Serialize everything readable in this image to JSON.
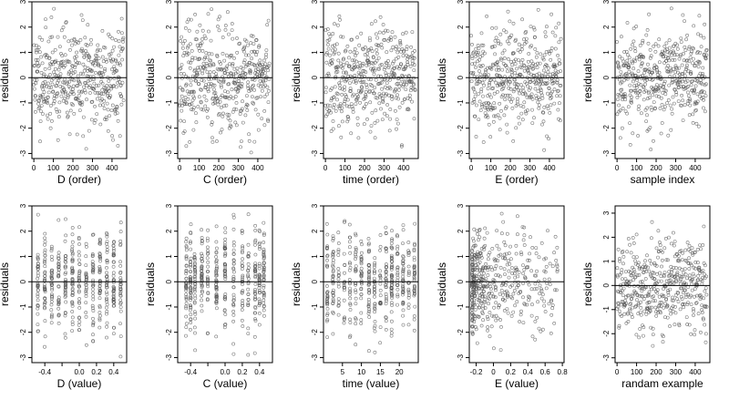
{
  "chart_data": [
    {
      "type": "scatter",
      "xlabel": "D (order)",
      "ylabel": "residuals",
      "xlim": [
        -10,
        475
      ],
      "ylim": [
        -3.2,
        3.0
      ],
      "xticks": [
        0,
        100,
        200,
        300,
        400
      ],
      "yticks": [
        -3,
        -2,
        -1,
        0,
        1,
        2,
        3
      ],
      "hline": 0,
      "n": 460,
      "pattern": "uniform",
      "seed": 11
    },
    {
      "type": "scatter",
      "xlabel": "C (order)",
      "ylabel": "residuals",
      "xlim": [
        -10,
        475
      ],
      "ylim": [
        -3.2,
        3.0
      ],
      "xticks": [
        0,
        100,
        200,
        300,
        400
      ],
      "yticks": [
        -3,
        -2,
        -1,
        0,
        1,
        2,
        3
      ],
      "hline": 0,
      "n": 460,
      "pattern": "uniform",
      "seed": 23
    },
    {
      "type": "scatter",
      "xlabel": "time (order)",
      "ylabel": "residuals",
      "xlim": [
        -10,
        475
      ],
      "ylim": [
        -3.2,
        3.0
      ],
      "xticks": [
        0,
        100,
        200,
        300,
        400
      ],
      "yticks": [
        -3,
        -2,
        -1,
        0,
        1,
        2,
        3
      ],
      "hline": 0,
      "n": 460,
      "pattern": "uniform",
      "seed": 37
    },
    {
      "type": "scatter",
      "xlabel": "E (order)",
      "ylabel": "residuals",
      "xlim": [
        -10,
        475
      ],
      "ylim": [
        -3.2,
        3.0
      ],
      "xticks": [
        0,
        100,
        200,
        300,
        400
      ],
      "yticks": [
        -3,
        -2,
        -1,
        0,
        1,
        2,
        3
      ],
      "hline": 0,
      "n": 460,
      "pattern": "uniform",
      "seed": 41
    },
    {
      "type": "scatter",
      "xlabel": "sample index",
      "ylabel": "residuals",
      "xlim": [
        -10,
        475
      ],
      "ylim": [
        -3.2,
        3.0
      ],
      "xticks": [
        0,
        100,
        200,
        300,
        400
      ],
      "yticks": [
        -3,
        -2,
        -1,
        0,
        1,
        2,
        3
      ],
      "hline": 0,
      "n": 460,
      "pattern": "uniform",
      "seed": 53
    },
    {
      "type": "scatter",
      "xlabel": "D (value)",
      "ylabel": "residuals",
      "xlim": [
        -0.55,
        0.55
      ],
      "ylim": [
        -3.2,
        3.0
      ],
      "xticks": [
        -0.4,
        -0.2,
        0.0,
        0.2,
        0.4
      ],
      "xtick_labels": [
        "-0.4",
        "",
        "0.0",
        "0.2",
        "0.4"
      ],
      "yticks": [
        -3,
        -2,
        -1,
        0,
        1,
        2,
        3
      ],
      "hline": 0,
      "n": 460,
      "pattern": "columns",
      "columns": [
        -0.48,
        -0.4,
        -0.32,
        -0.24,
        -0.16,
        -0.08,
        0.0,
        0.08,
        0.16,
        0.24,
        0.32,
        0.4,
        0.48
      ],
      "seed": 61
    },
    {
      "type": "scatter",
      "xlabel": "C (value)",
      "ylabel": "residuals",
      "xlim": [
        -0.55,
        0.55
      ],
      "ylim": [
        -3.2,
        3.0
      ],
      "xticks": [
        -0.4,
        -0.2,
        0.0,
        0.2,
        0.4
      ],
      "xtick_labels": [
        "-0.4",
        "",
        "0.0",
        "0.2",
        "0.4"
      ],
      "yticks": [
        -3,
        -2,
        -1,
        0,
        1,
        2,
        3
      ],
      "hline": 0,
      "n": 460,
      "pattern": "columns",
      "columns": [
        -0.45,
        -0.4,
        -0.35,
        -0.27,
        -0.2,
        -0.1,
        0.0,
        0.1,
        0.2,
        0.27,
        0.35,
        0.4,
        0.45
      ],
      "seed": 67
    },
    {
      "type": "scatter",
      "xlabel": "time (value)",
      "ylabel": "residuals",
      "xlim": [
        0,
        25
      ],
      "ylim": [
        -3.2,
        3.0
      ],
      "xticks": [
        5,
        10,
        15,
        20
      ],
      "yticks": [
        -3,
        -2,
        -1,
        0,
        1,
        2,
        3
      ],
      "hline": 0,
      "n": 460,
      "pattern": "columns",
      "columns": [
        1,
        2.5,
        4,
        5.5,
        7,
        8.5,
        10,
        12,
        13.5,
        15,
        16.5,
        18,
        19.5,
        21,
        22.5,
        24
      ],
      "seed": 71
    },
    {
      "type": "scatter",
      "xlabel": "E (value)",
      "ylabel": "residuals",
      "xlim": [
        -0.28,
        0.82
      ],
      "ylim": [
        -3.2,
        3.0
      ],
      "xticks": [
        -0.2,
        0.0,
        0.2,
        0.4,
        0.6,
        0.8
      ],
      "yticks": [
        -3,
        -2,
        -1,
        0,
        1,
        2,
        3
      ],
      "hline": 0,
      "n": 460,
      "pattern": "skewed",
      "seed": 79
    },
    {
      "type": "scatter",
      "xlabel": "randam example",
      "ylabel": "residuals",
      "xlim": [
        -10,
        475
      ],
      "ylim": [
        -3.2,
        3.3
      ],
      "xticks": [
        0,
        100,
        200,
        300,
        400
      ],
      "yticks": [
        -3,
        -2,
        -1,
        0,
        1,
        2,
        3
      ],
      "hline": 0,
      "n": 460,
      "pattern": "uniform",
      "seed": 89
    }
  ]
}
